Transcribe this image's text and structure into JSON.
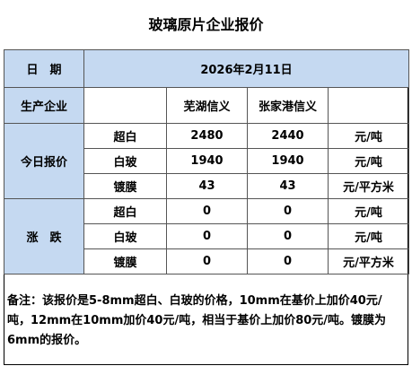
{
  "header": {
    "title": "玻璃原片企业报价"
  },
  "table": {
    "date_label": "日　期",
    "date": "2026年2月11日",
    "company_label": "生产企业",
    "companies": [
      "芜湖信义",
      "张家港信义"
    ],
    "sections": [
      {
        "label": "今日报价",
        "rows": [
          {
            "product": "超白",
            "values": [
              2480,
              2440
            ],
            "unit": "元/吨"
          },
          {
            "product": "白玻",
            "values": [
              1940,
              1940
            ],
            "unit": "元/吨"
          },
          {
            "product": "镀膜",
            "values": [
              43,
              43
            ],
            "unit": "元/平方米"
          }
        ]
      },
      {
        "label": "涨　跌",
        "rows": [
          {
            "product": "超白",
            "values": [
              0,
              0
            ],
            "unit": "元/吨"
          },
          {
            "product": "白玻",
            "values": [
              0,
              0
            ],
            "unit": "元/吨"
          },
          {
            "product": "镀膜",
            "values": [
              0,
              0
            ],
            "unit": "元/平方米"
          }
        ]
      }
    ]
  },
  "note": "备注：该报价是5-8mm超白、白玻的价格，10mm在基价上加价40元/吨，12mm在10mm加价40元/吨，相当于基价上加价80元/吨。镀膜为6mm的报价。"
}
